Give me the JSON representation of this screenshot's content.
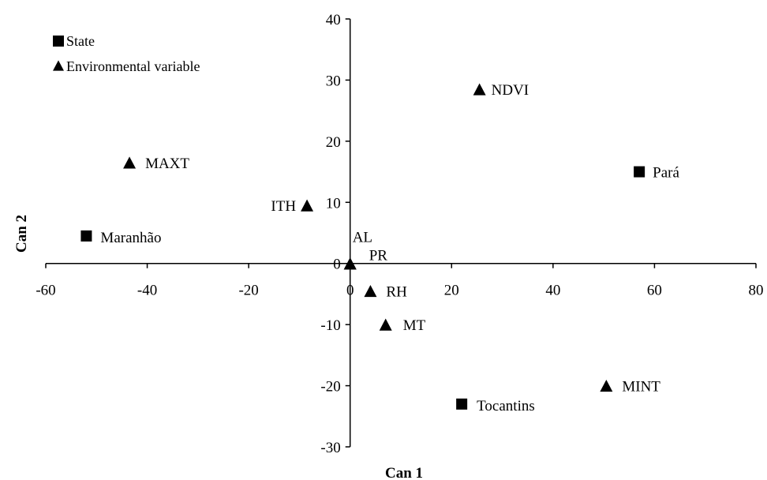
{
  "chart_data": {
    "type": "scatter",
    "xlabel": "Can 1",
    "ylabel": "Can 2",
    "xlim": [
      -60,
      80
    ],
    "ylim": [
      -30,
      40
    ],
    "xticks": [
      -60,
      -40,
      -20,
      0,
      20,
      40,
      60,
      80
    ],
    "yticks": [
      -30,
      -20,
      -10,
      0,
      10,
      20,
      30,
      40
    ],
    "grid": false,
    "legend_position": "top-left",
    "series": [
      {
        "name": "State",
        "marker": "square",
        "points": [
          {
            "label": "Pará",
            "x": 57,
            "y": 15
          },
          {
            "label": "Maranhão",
            "x": -52,
            "y": 4.5
          },
          {
            "label": "Tocantins",
            "x": 22,
            "y": -23
          }
        ]
      },
      {
        "name": "Environmental variable",
        "marker": "triangle",
        "points": [
          {
            "label": "NDVI",
            "x": 25.5,
            "y": 28.5
          },
          {
            "label": "MAXT",
            "x": -43.5,
            "y": 16.5
          },
          {
            "label": "ITH",
            "x": -8.5,
            "y": 9.5
          },
          {
            "label": "AL",
            "x": 0,
            "y": 0
          },
          {
            "label": "PR",
            "x": 0,
            "y": 0
          },
          {
            "label": "RH",
            "x": 4,
            "y": -4.5
          },
          {
            "label": "MT",
            "x": 7,
            "y": -10
          },
          {
            "label": "MINT",
            "x": 50.5,
            "y": -20
          }
        ]
      }
    ]
  }
}
